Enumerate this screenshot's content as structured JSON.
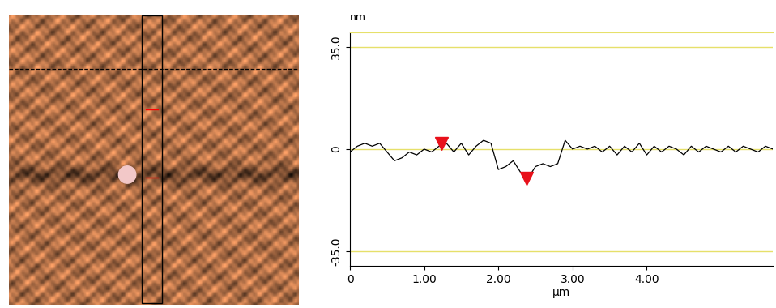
{
  "chart_data": {
    "type": "line",
    "x_label": "µm",
    "y_label": "nm",
    "x": [
      0.0,
      0.1,
      0.2,
      0.3,
      0.4,
      0.5,
      0.6,
      0.7,
      0.8,
      0.9,
      1.0,
      1.1,
      1.2,
      1.3,
      1.4,
      1.5,
      1.6,
      1.7,
      1.8,
      1.9,
      2.0,
      2.1,
      2.2,
      2.3,
      2.4,
      2.5,
      2.6,
      2.7,
      2.8,
      2.9,
      3.0,
      3.1,
      3.2,
      3.3,
      3.4,
      3.5,
      3.6,
      3.7,
      3.8,
      3.9,
      4.0,
      4.1,
      4.2,
      4.3,
      4.4,
      4.5,
      4.6,
      4.7,
      4.8,
      4.9,
      5.0,
      5.1,
      5.2,
      5.3,
      5.4,
      5.5,
      5.6,
      5.7
    ],
    "values": [
      -1,
      1,
      2,
      1,
      2,
      -1,
      -4,
      -3,
      -1,
      -2,
      0,
      -1,
      1,
      2,
      -1,
      2,
      -2,
      1,
      3,
      2,
      -7,
      -6,
      -4,
      -8,
      -10,
      -6,
      -5,
      -6,
      -5,
      3,
      0,
      1,
      0,
      1,
      -1,
      1,
      -2,
      1,
      -1,
      2,
      -2,
      1,
      -1,
      1,
      0,
      -2,
      1,
      -1,
      1,
      0,
      -1,
      1,
      -1,
      1,
      0,
      -1,
      1,
      0
    ],
    "color": "#000000",
    "markers": [
      {
        "x": 1.23,
        "y": 2
      },
      {
        "x": 2.38,
        "y": -10
      }
    ],
    "marker_color": "#e8101a",
    "xlim": [
      0,
      5.7
    ],
    "xticks": [
      0,
      {
        "value": 1,
        "label": "1.00"
      },
      {
        "value": 2,
        "label": "2.00"
      },
      {
        "value": 3,
        "label": "3.00"
      },
      {
        "value": 4,
        "label": "4.00"
      }
    ],
    "ylim": [
      -40,
      40
    ],
    "yticks": [
      {
        "value": -35,
        "label": "-35.0"
      },
      0,
      {
        "value": 35,
        "label": "35.0"
      }
    ],
    "grid": true
  }
}
